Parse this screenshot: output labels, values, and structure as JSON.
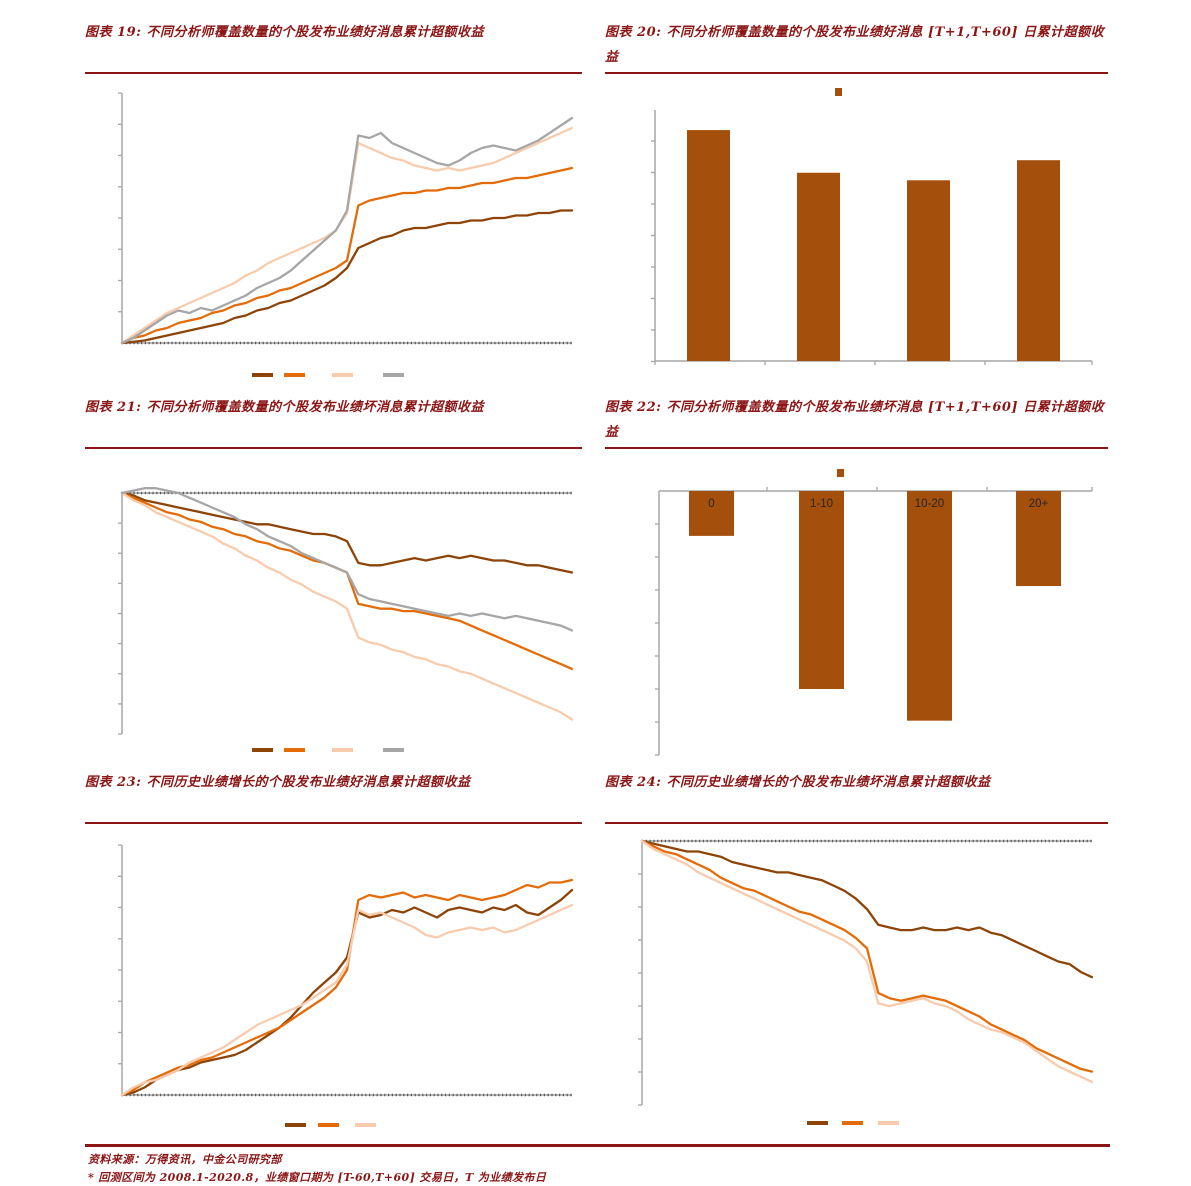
{
  "page": {
    "background": "#ffffff",
    "title_color": "#8C1616",
    "rule_color": "#8B1414",
    "axis_color": "#A6A6A6",
    "axis_dot_color": "#595959"
  },
  "footer": {
    "source": "资料来源：万得资讯，中金公司研究部",
    "note": "* 回测区间为 2008.1-2020.8，业绩窗口期为 [T-60,T+60] 交易日，T 为业绩发布日"
  },
  "chart_data": [
    {
      "figure_no": "图表 19",
      "title": "图表 19:  不同分析师覆盖数量的个股发布业绩好消息累计超额收益",
      "type": "line",
      "xlabel": "",
      "ylabel": "",
      "x_note": "event window [T-60,T+60] trading days (per footnote); axis tick labels not rendered in image",
      "ylim": [
        0,
        1
      ],
      "units": "normalized cumulative abnormal return (y tick labels not rendered)",
      "legend_labels_visible": false,
      "series": [
        {
          "name": "dark-brown",
          "color": "#8C4408",
          "values": [
            0,
            0.005,
            0.01,
            0.02,
            0.03,
            0.04,
            0.05,
            0.06,
            0.07,
            0.08,
            0.1,
            0.11,
            0.13,
            0.14,
            0.16,
            0.17,
            0.19,
            0.21,
            0.23,
            0.26,
            0.3,
            0.38,
            0.4,
            0.42,
            0.43,
            0.45,
            0.46,
            0.46,
            0.47,
            0.48,
            0.48,
            0.49,
            0.49,
            0.5,
            0.5,
            0.51,
            0.51,
            0.52,
            0.52,
            0.53,
            0.53
          ]
        },
        {
          "name": "orange",
          "color": "#E36C09",
          "values": [
            0,
            0.02,
            0.03,
            0.05,
            0.06,
            0.08,
            0.09,
            0.1,
            0.12,
            0.13,
            0.15,
            0.16,
            0.18,
            0.19,
            0.21,
            0.22,
            0.24,
            0.26,
            0.28,
            0.3,
            0.33,
            0.55,
            0.57,
            0.58,
            0.59,
            0.6,
            0.6,
            0.61,
            0.61,
            0.62,
            0.62,
            0.63,
            0.64,
            0.64,
            0.65,
            0.66,
            0.66,
            0.67,
            0.68,
            0.69,
            0.7
          ]
        },
        {
          "name": "peach",
          "color": "#F8CBAD",
          "values": [
            0,
            0.03,
            0.06,
            0.09,
            0.12,
            0.14,
            0.16,
            0.18,
            0.2,
            0.22,
            0.24,
            0.27,
            0.29,
            0.32,
            0.34,
            0.36,
            0.38,
            0.4,
            0.42,
            0.45,
            0.52,
            0.8,
            0.78,
            0.76,
            0.74,
            0.73,
            0.71,
            0.7,
            0.69,
            0.7,
            0.69,
            0.7,
            0.71,
            0.72,
            0.74,
            0.76,
            0.78,
            0.8,
            0.82,
            0.84,
            0.86
          ]
        },
        {
          "name": "gray",
          "color": "#A6A6A6",
          "values": [
            0,
            0.02,
            0.05,
            0.08,
            0.11,
            0.13,
            0.12,
            0.14,
            0.13,
            0.15,
            0.17,
            0.19,
            0.22,
            0.24,
            0.26,
            0.29,
            0.33,
            0.37,
            0.41,
            0.45,
            0.53,
            0.83,
            0.82,
            0.84,
            0.8,
            0.78,
            0.76,
            0.74,
            0.72,
            0.71,
            0.73,
            0.76,
            0.78,
            0.79,
            0.78,
            0.77,
            0.79,
            0.81,
            0.84,
            0.87,
            0.9
          ]
        }
      ]
    },
    {
      "figure_no": "图表 20",
      "title": "图表 20:  不同分析师覆盖数量的个股发布业绩好消息 [T+1,T+60] 日累计超额收益",
      "type": "bar",
      "xlabel": "",
      "ylabel": "",
      "categories": [
        "",
        "",
        "",
        ""
      ],
      "category_labels_visible": false,
      "values": [
        0.92,
        0.75,
        0.72,
        0.8
      ],
      "units": "normalized bar heights (axis tick labels not rendered in image)",
      "bar_color": "#A4500C",
      "legend_swatch_color": "#A4500C",
      "baseline": "bottom"
    },
    {
      "figure_no": "图表 21",
      "title": "图表 21:  不同分析师覆盖数量的个股发布业绩坏消息累计超额收益",
      "type": "line",
      "xlabel": "",
      "ylabel": "",
      "x_note": "event window [T-60,T+60] trading days (per footnote); axis tick labels not rendered in image",
      "ylim": [
        -1,
        0
      ],
      "units": "normalized cumulative abnormal return (y tick labels not rendered)",
      "legend_labels_visible": false,
      "series": [
        {
          "name": "dark-brown",
          "color": "#8C4408",
          "values": [
            0,
            -0.01,
            -0.03,
            -0.04,
            -0.05,
            -0.06,
            -0.07,
            -0.08,
            -0.09,
            -0.1,
            -0.11,
            -0.12,
            -0.13,
            -0.13,
            -0.14,
            -0.15,
            -0.16,
            -0.17,
            -0.17,
            -0.18,
            -0.2,
            -0.29,
            -0.3,
            -0.3,
            -0.29,
            -0.28,
            -0.27,
            -0.28,
            -0.27,
            -0.26,
            -0.27,
            -0.26,
            -0.27,
            -0.28,
            -0.28,
            -0.29,
            -0.3,
            -0.3,
            -0.31,
            -0.32,
            -0.33
          ]
        },
        {
          "name": "orange",
          "color": "#E36C09",
          "values": [
            0,
            -0.02,
            -0.04,
            -0.06,
            -0.08,
            -0.09,
            -0.11,
            -0.12,
            -0.14,
            -0.15,
            -0.17,
            -0.18,
            -0.2,
            -0.21,
            -0.23,
            -0.24,
            -0.26,
            -0.28,
            -0.29,
            -0.31,
            -0.33,
            -0.46,
            -0.47,
            -0.48,
            -0.48,
            -0.49,
            -0.49,
            -0.5,
            -0.51,
            -0.52,
            -0.53,
            -0.55,
            -0.57,
            -0.59,
            -0.61,
            -0.63,
            -0.65,
            -0.67,
            -0.69,
            -0.71,
            -0.73
          ]
        },
        {
          "name": "peach",
          "color": "#F8CBAD",
          "values": [
            0,
            -0.03,
            -0.05,
            -0.08,
            -0.1,
            -0.12,
            -0.14,
            -0.16,
            -0.18,
            -0.21,
            -0.23,
            -0.26,
            -0.28,
            -0.31,
            -0.33,
            -0.36,
            -0.38,
            -0.41,
            -0.43,
            -0.45,
            -0.48,
            -0.6,
            -0.62,
            -0.63,
            -0.65,
            -0.66,
            -0.68,
            -0.69,
            -0.71,
            -0.72,
            -0.74,
            -0.75,
            -0.77,
            -0.79,
            -0.81,
            -0.83,
            -0.85,
            -0.87,
            -0.89,
            -0.91,
            -0.94
          ]
        },
        {
          "name": "gray",
          "color": "#A6A6A6",
          "values": [
            0,
            0.01,
            0.02,
            0.02,
            0.01,
            0,
            -0.02,
            -0.04,
            -0.06,
            -0.08,
            -0.1,
            -0.13,
            -0.15,
            -0.18,
            -0.2,
            -0.22,
            -0.25,
            -0.27,
            -0.29,
            -0.31,
            -0.33,
            -0.42,
            -0.44,
            -0.45,
            -0.46,
            -0.47,
            -0.48,
            -0.49,
            -0.5,
            -0.51,
            -0.5,
            -0.51,
            -0.5,
            -0.51,
            -0.52,
            -0.51,
            -0.52,
            -0.53,
            -0.54,
            -0.55,
            -0.57
          ]
        }
      ]
    },
    {
      "figure_no": "图表 22",
      "title": "图表 22:  不同分析师覆盖数量的个股发布业绩坏消息 [T+1,T+60] 日累计超额收益",
      "type": "bar",
      "xlabel": "",
      "ylabel": "",
      "categories": [
        "0",
        "1-10",
        "10-20",
        "20+"
      ],
      "category_labels_visible": true,
      "category_label_color": "#262626",
      "values": [
        -0.17,
        -0.75,
        -0.87,
        -0.36
      ],
      "units": "normalized bar depths (axis tick labels not rendered in image)",
      "bar_color": "#A4500C",
      "legend_swatch_color": "#A4500C",
      "baseline": "top"
    },
    {
      "figure_no": "图表 23",
      "title": "图表 23:  不同历史业绩增长的个股发布业绩好消息累计超额收益",
      "type": "line",
      "xlabel": "",
      "ylabel": "",
      "x_note": "event window [T-60,T+60] trading days (per footnote); axis tick labels not rendered in image",
      "ylim": [
        0,
        1
      ],
      "units": "normalized cumulative abnormal return (y tick labels not rendered)",
      "legend_labels_visible": false,
      "series": [
        {
          "name": "dark-brown",
          "color": "#8C4408",
          "values": [
            0,
            0.01,
            0.03,
            0.06,
            0.08,
            0.1,
            0.11,
            0.13,
            0.14,
            0.15,
            0.16,
            0.18,
            0.21,
            0.24,
            0.27,
            0.31,
            0.36,
            0.41,
            0.45,
            0.49,
            0.55,
            0.73,
            0.71,
            0.72,
            0.74,
            0.73,
            0.75,
            0.73,
            0.71,
            0.74,
            0.75,
            0.74,
            0.73,
            0.75,
            0.74,
            0.76,
            0.73,
            0.72,
            0.75,
            0.78,
            0.82
          ]
        },
        {
          "name": "orange",
          "color": "#E36C09",
          "values": [
            0,
            0.02,
            0.05,
            0.07,
            0.09,
            0.11,
            0.12,
            0.14,
            0.15,
            0.17,
            0.19,
            0.21,
            0.23,
            0.25,
            0.27,
            0.3,
            0.33,
            0.36,
            0.39,
            0.43,
            0.5,
            0.78,
            0.8,
            0.79,
            0.8,
            0.81,
            0.79,
            0.8,
            0.79,
            0.78,
            0.8,
            0.79,
            0.78,
            0.79,
            0.8,
            0.82,
            0.84,
            0.83,
            0.85,
            0.85,
            0.86
          ]
        },
        {
          "name": "peach",
          "color": "#F8CBAD",
          "values": [
            0,
            0.03,
            0.05,
            0.06,
            0.08,
            0.1,
            0.13,
            0.15,
            0.17,
            0.19,
            0.22,
            0.25,
            0.28,
            0.3,
            0.32,
            0.34,
            0.36,
            0.39,
            0.42,
            0.45,
            0.52,
            0.74,
            0.72,
            0.73,
            0.71,
            0.69,
            0.67,
            0.64,
            0.63,
            0.65,
            0.66,
            0.67,
            0.66,
            0.67,
            0.65,
            0.66,
            0.68,
            0.7,
            0.72,
            0.74,
            0.76
          ]
        }
      ]
    },
    {
      "figure_no": "图表 24",
      "title": "图表 24:  不同历史业绩增长的个股发布业绩坏消息累计超额收益",
      "type": "line",
      "xlabel": "",
      "ylabel": "",
      "x_note": "event window [T-60,T+60] trading days (per footnote); axis tick labels not rendered in image",
      "ylim": [
        -1,
        0
      ],
      "units": "normalized cumulative abnormal return (y tick labels not rendered)",
      "legend_labels_visible": false,
      "series": [
        {
          "name": "dark-brown",
          "color": "#8C4408",
          "values": [
            0,
            -0.01,
            -0.02,
            -0.03,
            -0.04,
            -0.04,
            -0.05,
            -0.06,
            -0.08,
            -0.09,
            -0.1,
            -0.11,
            -0.12,
            -0.12,
            -0.13,
            -0.14,
            -0.15,
            -0.17,
            -0.19,
            -0.22,
            -0.26,
            -0.32,
            -0.33,
            -0.34,
            -0.34,
            -0.33,
            -0.34,
            -0.34,
            -0.33,
            -0.34,
            -0.33,
            -0.35,
            -0.36,
            -0.38,
            -0.4,
            -0.42,
            -0.44,
            -0.46,
            -0.47,
            -0.5,
            -0.52
          ]
        },
        {
          "name": "orange",
          "color": "#E36C09",
          "values": [
            0,
            -0.02,
            -0.04,
            -0.05,
            -0.07,
            -0.09,
            -0.11,
            -0.14,
            -0.16,
            -0.18,
            -0.19,
            -0.21,
            -0.23,
            -0.25,
            -0.27,
            -0.28,
            -0.3,
            -0.32,
            -0.34,
            -0.37,
            -0.41,
            -0.58,
            -0.6,
            -0.61,
            -0.6,
            -0.59,
            -0.6,
            -0.61,
            -0.63,
            -0.65,
            -0.67,
            -0.7,
            -0.72,
            -0.74,
            -0.76,
            -0.79,
            -0.81,
            -0.83,
            -0.85,
            -0.87,
            -0.88
          ]
        },
        {
          "name": "peach",
          "color": "#F8CBAD",
          "values": [
            0,
            -0.03,
            -0.05,
            -0.07,
            -0.09,
            -0.12,
            -0.14,
            -0.16,
            -0.18,
            -0.2,
            -0.22,
            -0.24,
            -0.26,
            -0.28,
            -0.3,
            -0.32,
            -0.34,
            -0.36,
            -0.38,
            -0.41,
            -0.46,
            -0.62,
            -0.63,
            -0.62,
            -0.61,
            -0.6,
            -0.62,
            -0.63,
            -0.65,
            -0.68,
            -0.7,
            -0.72,
            -0.73,
            -0.75,
            -0.77,
            -0.8,
            -0.83,
            -0.86,
            -0.88,
            -0.9,
            -0.92
          ]
        }
      ]
    }
  ]
}
